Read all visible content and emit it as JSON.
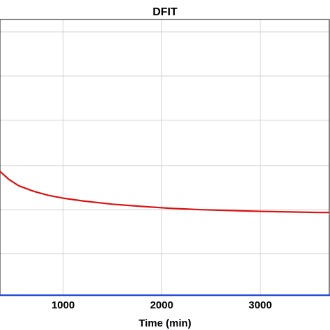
{
  "chart_data": {
    "type": "line",
    "title": "DFIT",
    "xlabel": "Time (min)",
    "ylabel": "",
    "xlim": [
      360,
      3700
    ],
    "ylim": [
      0,
      1
    ],
    "grid": true,
    "x_ticks": [
      1000,
      2000,
      3000
    ],
    "x_tick_labels": [
      "1000",
      "2000",
      "3000"
    ],
    "y_gridlines": [
      0.15,
      0.31,
      0.47,
      0.635,
      0.795,
      0.955
    ],
    "series": [
      {
        "color": "#dd1111",
        "x": [
          360,
          450,
          550,
          700,
          850,
          1000,
          1200,
          1500,
          1800,
          2100,
          2400,
          2700,
          3000,
          3300,
          3600,
          3700
        ],
        "y": [
          0.449,
          0.42,
          0.397,
          0.377,
          0.362,
          0.352,
          0.342,
          0.33,
          0.322,
          0.315,
          0.31,
          0.307,
          0.304,
          0.302,
          0.3,
          0.3
        ]
      }
    ]
  },
  "colors": {
    "plot_frame": "#333333",
    "grid": "#d0d0d0",
    "x_baseline": "#2a4fd6"
  }
}
